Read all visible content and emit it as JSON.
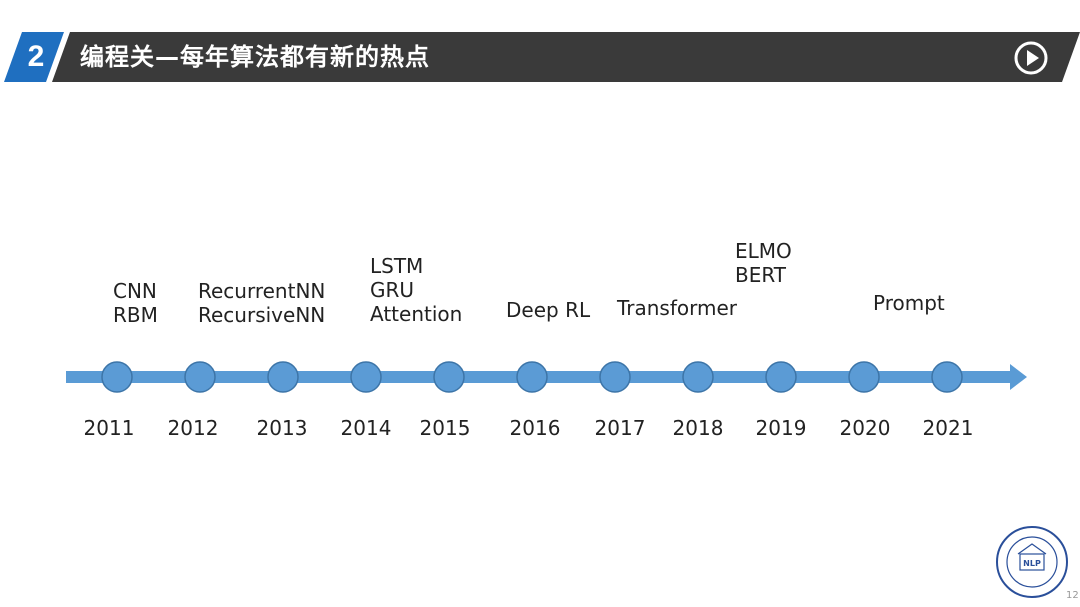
{
  "header": {
    "section_number": "2",
    "title": "编程关—每年算法都有新的热点",
    "play_icon": "play-circle-icon",
    "colors": {
      "band": "#3a3a3a",
      "accent": "#1f6fc0"
    }
  },
  "timeline": {
    "colors": {
      "arrow": "#5a9bd5",
      "node_fill": "#5b9bd5",
      "node_stroke": "#3d75a8"
    },
    "years": [
      {
        "label": "2011"
      },
      {
        "label": "2012"
      },
      {
        "label": "2013"
      },
      {
        "label": "2014"
      },
      {
        "label": "2015"
      },
      {
        "label": "2016"
      },
      {
        "label": "2017"
      },
      {
        "label": "2018"
      },
      {
        "label": "2019"
      },
      {
        "label": "2020"
      },
      {
        "label": "2021"
      }
    ],
    "events": [
      {
        "lines": [
          "CNN",
          "RBM"
        ]
      },
      {
        "lines": [
          "RecurrentNN",
          "RecursiveNN"
        ]
      },
      {
        "lines": [
          "LSTM",
          "GRU",
          "Attention"
        ]
      },
      {
        "lines": [
          "Deep RL"
        ]
      },
      {
        "lines": [
          "Transformer"
        ]
      },
      {
        "lines": [
          "ELMO",
          "BERT"
        ]
      },
      {
        "lines": [
          "Prompt"
        ]
      }
    ]
  },
  "footer": {
    "page_number": "12"
  }
}
